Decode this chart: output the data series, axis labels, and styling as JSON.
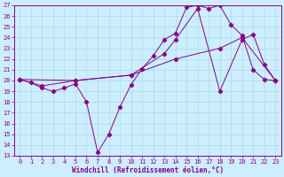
{
  "xlabel": "Windchill (Refroidissement éolien,°C)",
  "xlim": [
    -0.5,
    23.5
  ],
  "ylim": [
    13,
    27
  ],
  "yticks": [
    13,
    14,
    15,
    16,
    17,
    18,
    19,
    20,
    21,
    22,
    23,
    24,
    25,
    26,
    27
  ],
  "xticks": [
    0,
    1,
    2,
    3,
    4,
    5,
    6,
    7,
    8,
    9,
    10,
    11,
    12,
    13,
    14,
    15,
    16,
    17,
    18,
    19,
    20,
    21,
    22,
    23
  ],
  "bg_color": "#cceeff",
  "grid_color": "#aadddd",
  "line_color": "#880088",
  "series1_x": [
    0,
    1,
    2,
    3,
    4,
    5,
    6,
    7,
    8,
    9,
    10,
    11,
    12,
    13,
    14,
    15,
    16,
    17,
    18,
    19,
    20,
    21,
    22,
    23
  ],
  "series1_y": [
    20.1,
    19.8,
    19.3,
    19.0,
    19.3,
    19.7,
    18.0,
    13.3,
    15.0,
    17.5,
    19.6,
    21.1,
    22.3,
    23.8,
    24.4,
    26.8,
    27.0,
    26.7,
    27.0,
    25.2,
    24.2,
    21.0,
    20.1,
    20.0
  ],
  "series2_x": [
    0,
    2,
    5,
    10,
    13,
    14,
    16,
    18,
    20,
    21,
    22,
    23
  ],
  "series2_y": [
    20.1,
    19.5,
    20.0,
    20.5,
    22.5,
    23.8,
    26.7,
    19.0,
    23.8,
    24.3,
    21.5,
    20.0
  ],
  "series3_x": [
    0,
    5,
    10,
    14,
    18,
    20,
    23
  ],
  "series3_y": [
    20.1,
    20.0,
    20.5,
    22.0,
    23.0,
    24.0,
    20.0
  ],
  "font_name": "monospace",
  "tick_fontsize": 5.0,
  "xlabel_fontsize": 5.5
}
